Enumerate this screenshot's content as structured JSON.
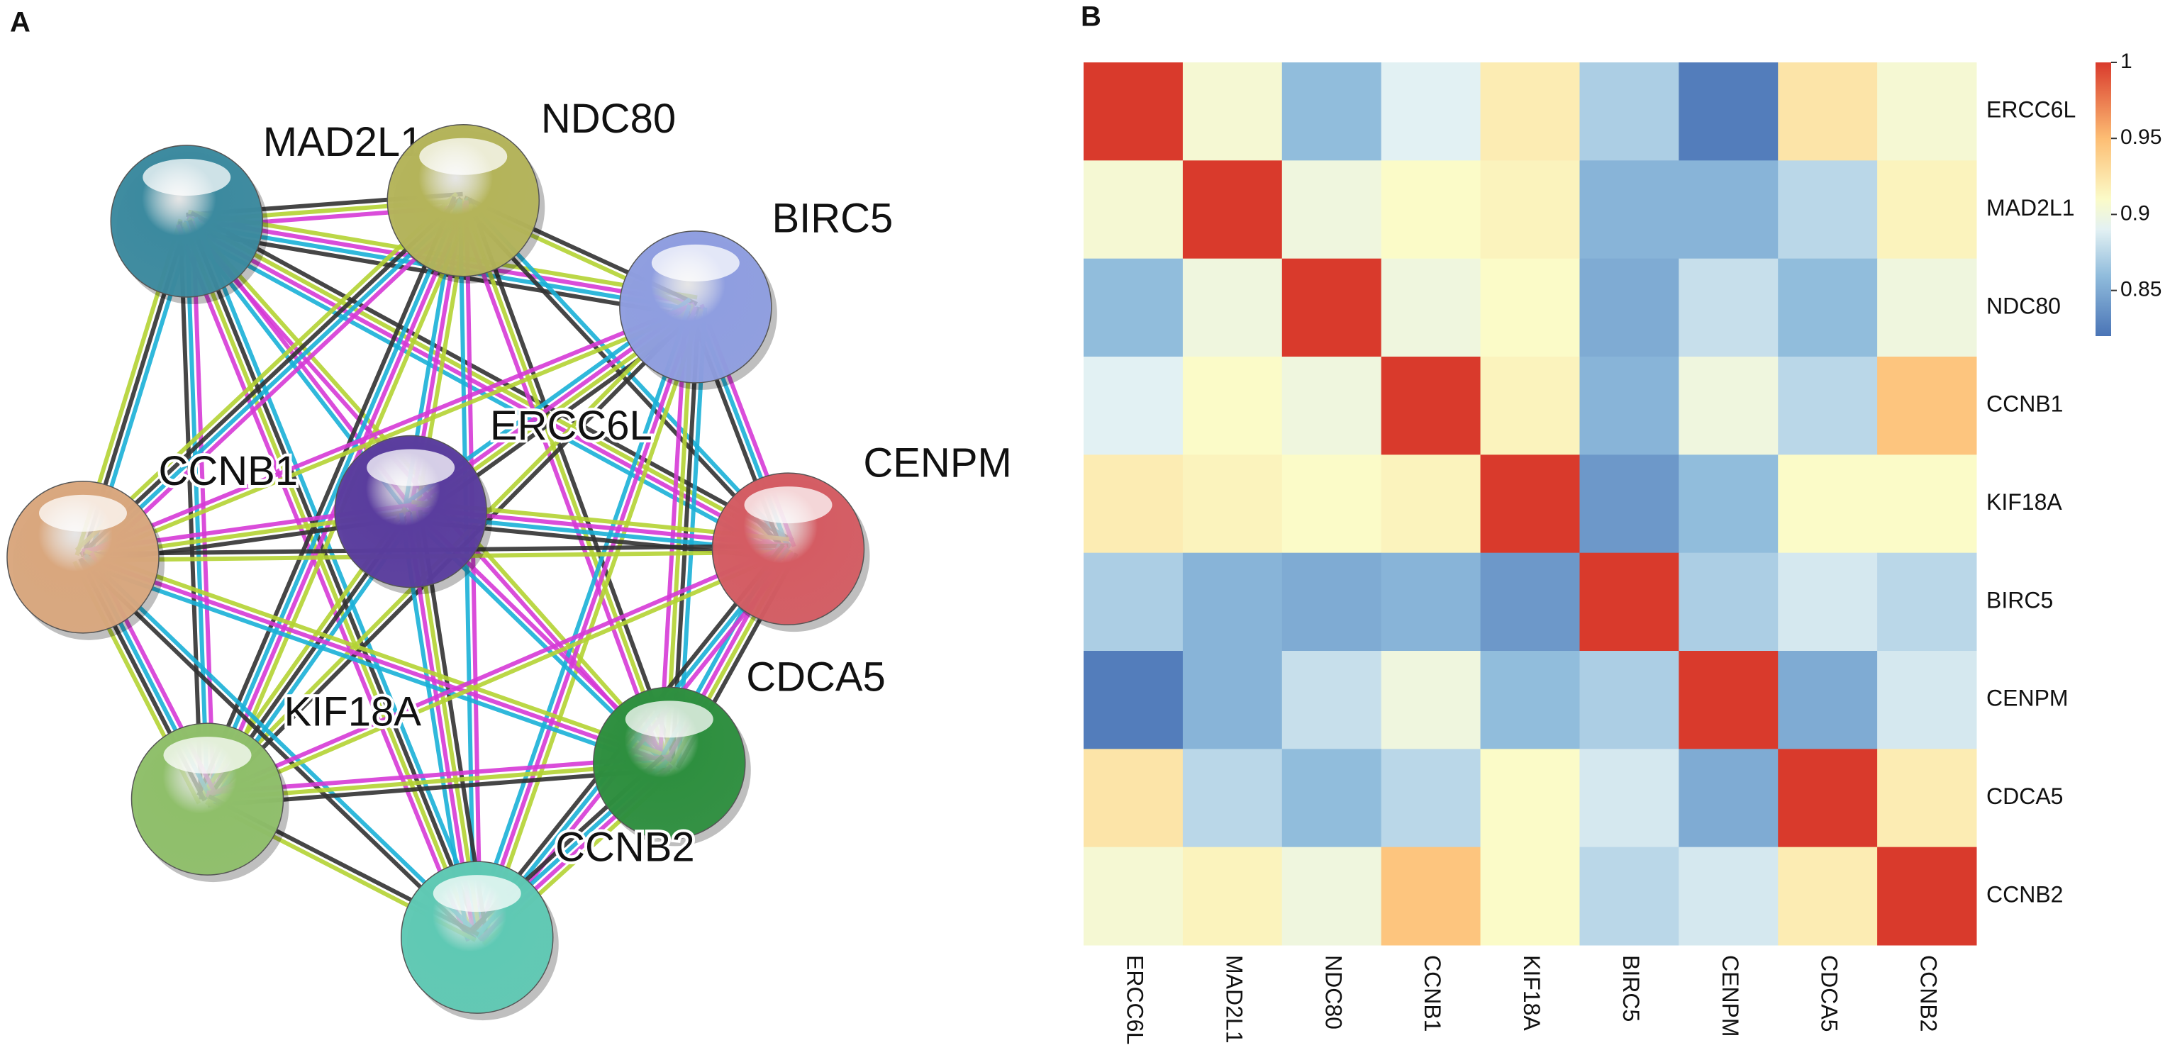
{
  "network": {
    "panel_label": "A",
    "nodes": [
      {
        "label": "MAD2L1"
      },
      {
        "label": "NDC80"
      },
      {
        "label": "BIRC5"
      },
      {
        "label": "ERCC6L"
      },
      {
        "label": "CCNB1"
      },
      {
        "label": "CENPM"
      },
      {
        "label": "CDCA5"
      },
      {
        "label": "KIF18A"
      },
      {
        "label": "CCNB2"
      }
    ]
  },
  "chart_data": {
    "type": "heatmap",
    "panel_label": "B",
    "rows": [
      "ERCC6L",
      "MAD2L1",
      "NDC80",
      "CCNB1",
      "KIF18A",
      "BIRC5",
      "CENPM",
      "CDCA5",
      "CCNB2"
    ],
    "columns": [
      "ERCC6L",
      "MAD2L1",
      "NDC80",
      "CCNB1",
      "KIF18A",
      "BIRC5",
      "CENPM",
      "CDCA5",
      "CCNB2"
    ],
    "values": [
      [
        1,
        0.905,
        0.86,
        0.89,
        0.92,
        0.87,
        0.825,
        0.925,
        0.905
      ],
      [
        0.905,
        1,
        0.9,
        0.91,
        0.915,
        0.855,
        0.855,
        0.875,
        0.915
      ],
      [
        0.86,
        0.9,
        1,
        0.9,
        0.91,
        0.85,
        0.88,
        0.86,
        0.9
      ],
      [
        0.89,
        0.91,
        0.9,
        1,
        0.915,
        0.855,
        0.9,
        0.875,
        0.945
      ],
      [
        0.92,
        0.915,
        0.91,
        0.915,
        1,
        0.84,
        0.86,
        0.91,
        0.91
      ],
      [
        0.87,
        0.855,
        0.85,
        0.855,
        0.84,
        1,
        0.87,
        0.885,
        0.875
      ],
      [
        0.825,
        0.855,
        0.88,
        0.9,
        0.86,
        0.87,
        1,
        0.85,
        0.885
      ],
      [
        0.925,
        0.875,
        0.86,
        0.875,
        0.91,
        0.885,
        0.85,
        1,
        0.92
      ],
      [
        0.905,
        0.915,
        0.9,
        0.945,
        0.91,
        0.875,
        0.885,
        0.92,
        1
      ]
    ],
    "zlim": [
      0.82,
      1
    ],
    "zticks": [
      0.85,
      0.9,
      0.95,
      1
    ]
  }
}
